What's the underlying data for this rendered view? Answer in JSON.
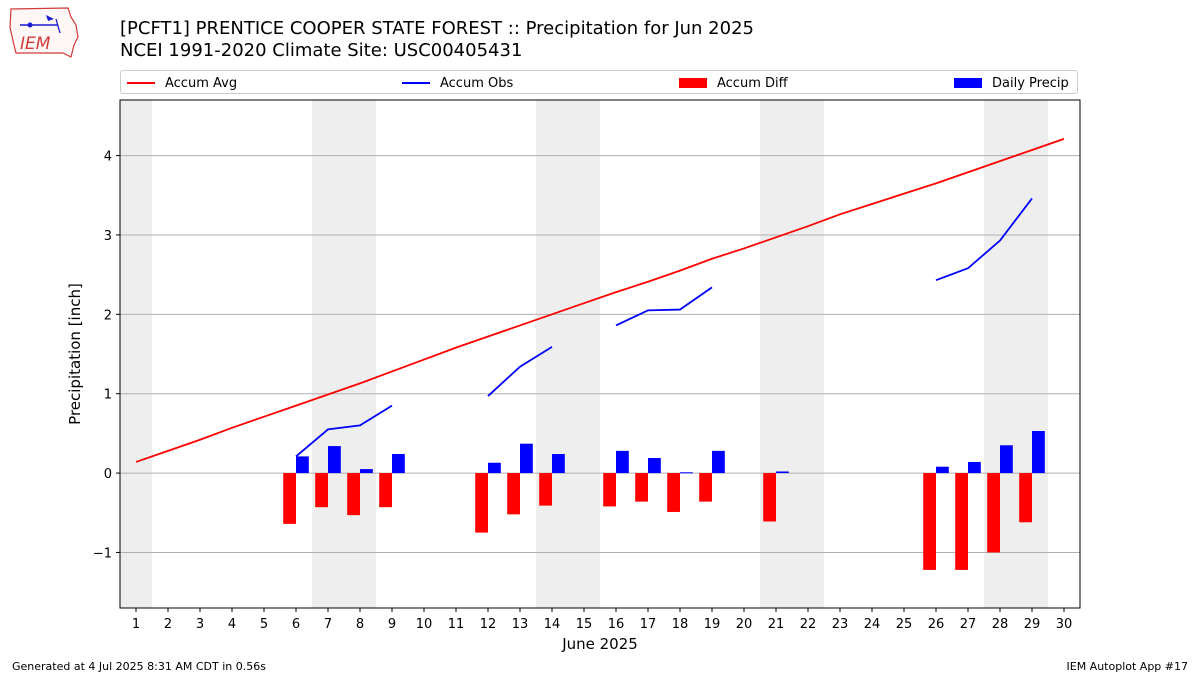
{
  "header": {
    "title_line1": "[PCFT1] PRENTICE COOPER STATE FOREST :: Precipitation for Jun 2025",
    "title_line2": "NCEI 1991-2020 Climate Site: USC00405431",
    "logo_text": "IEM"
  },
  "legend": {
    "items": [
      {
        "label": "Accum Avg",
        "color": "#ff0000",
        "kind": "line"
      },
      {
        "label": "Accum Obs",
        "color": "#0000ff",
        "kind": "line"
      },
      {
        "label": "Accum Diff",
        "color": "#ff0000",
        "kind": "bar"
      },
      {
        "label": "Daily Precip",
        "color": "#0000ff",
        "kind": "bar"
      }
    ]
  },
  "chart_data": {
    "type": "bar",
    "xlabel": "June 2025",
    "ylabel": "Precipitation [inch]",
    "xlim": [
      0.5,
      30.5
    ],
    "ylim": [
      -1.7,
      4.7
    ],
    "yticks": [
      -1,
      0,
      1,
      2,
      3,
      4
    ],
    "ytick_labels": [
      "−1",
      "0",
      "1",
      "2",
      "3",
      "4"
    ],
    "x": [
      1,
      2,
      3,
      4,
      5,
      6,
      7,
      8,
      9,
      10,
      11,
      12,
      13,
      14,
      15,
      16,
      17,
      18,
      19,
      20,
      21,
      22,
      23,
      24,
      25,
      26,
      27,
      28,
      29,
      30
    ],
    "weekend_days": [
      1,
      7,
      8,
      14,
      15,
      21,
      22,
      28,
      29
    ],
    "grid": "horizontal",
    "series": [
      {
        "name": "Accum Avg",
        "type": "line",
        "color": "#ff0000",
        "values": [
          0.14,
          0.28,
          0.42,
          0.57,
          0.71,
          0.85,
          0.99,
          1.13,
          1.28,
          1.43,
          1.58,
          1.72,
          1.86,
          2.0,
          2.14,
          2.28,
          2.41,
          2.55,
          2.7,
          2.83,
          2.97,
          3.11,
          3.26,
          3.39,
          3.52,
          3.65,
          3.79,
          3.93,
          4.07,
          4.21
        ]
      },
      {
        "name": "Accum Obs",
        "type": "line",
        "color": "#0000ff",
        "values": [
          null,
          null,
          null,
          null,
          null,
          0.21,
          0.55,
          0.6,
          0.85,
          null,
          null,
          0.97,
          1.34,
          1.59,
          null,
          1.86,
          2.05,
          2.06,
          2.34,
          null,
          null,
          null,
          null,
          null,
          null,
          2.43,
          2.58,
          2.93,
          3.46,
          null
        ]
      },
      {
        "name": "Accum Diff",
        "type": "bar",
        "color": "#ff0000",
        "values": [
          null,
          null,
          null,
          null,
          null,
          -0.64,
          -0.43,
          -0.53,
          -0.43,
          null,
          null,
          -0.75,
          -0.52,
          -0.41,
          null,
          -0.42,
          -0.36,
          -0.49,
          -0.36,
          null,
          -0.61,
          null,
          null,
          null,
          null,
          -1.22,
          -1.22,
          -1.0,
          -0.62,
          null
        ]
      },
      {
        "name": "Daily Precip",
        "type": "bar",
        "color": "#0000ff",
        "values": [
          null,
          null,
          null,
          null,
          null,
          0.21,
          0.34,
          0.05,
          0.24,
          null,
          null,
          0.13,
          0.37,
          0.24,
          null,
          0.28,
          0.19,
          0.01,
          0.28,
          null,
          0.02,
          null,
          null,
          null,
          null,
          0.08,
          0.14,
          0.35,
          0.53,
          null
        ]
      }
    ]
  },
  "footer": {
    "left": "Generated at 4 Jul 2025 8:31 AM CDT in 0.56s",
    "right": "IEM Autoplot App #17"
  }
}
